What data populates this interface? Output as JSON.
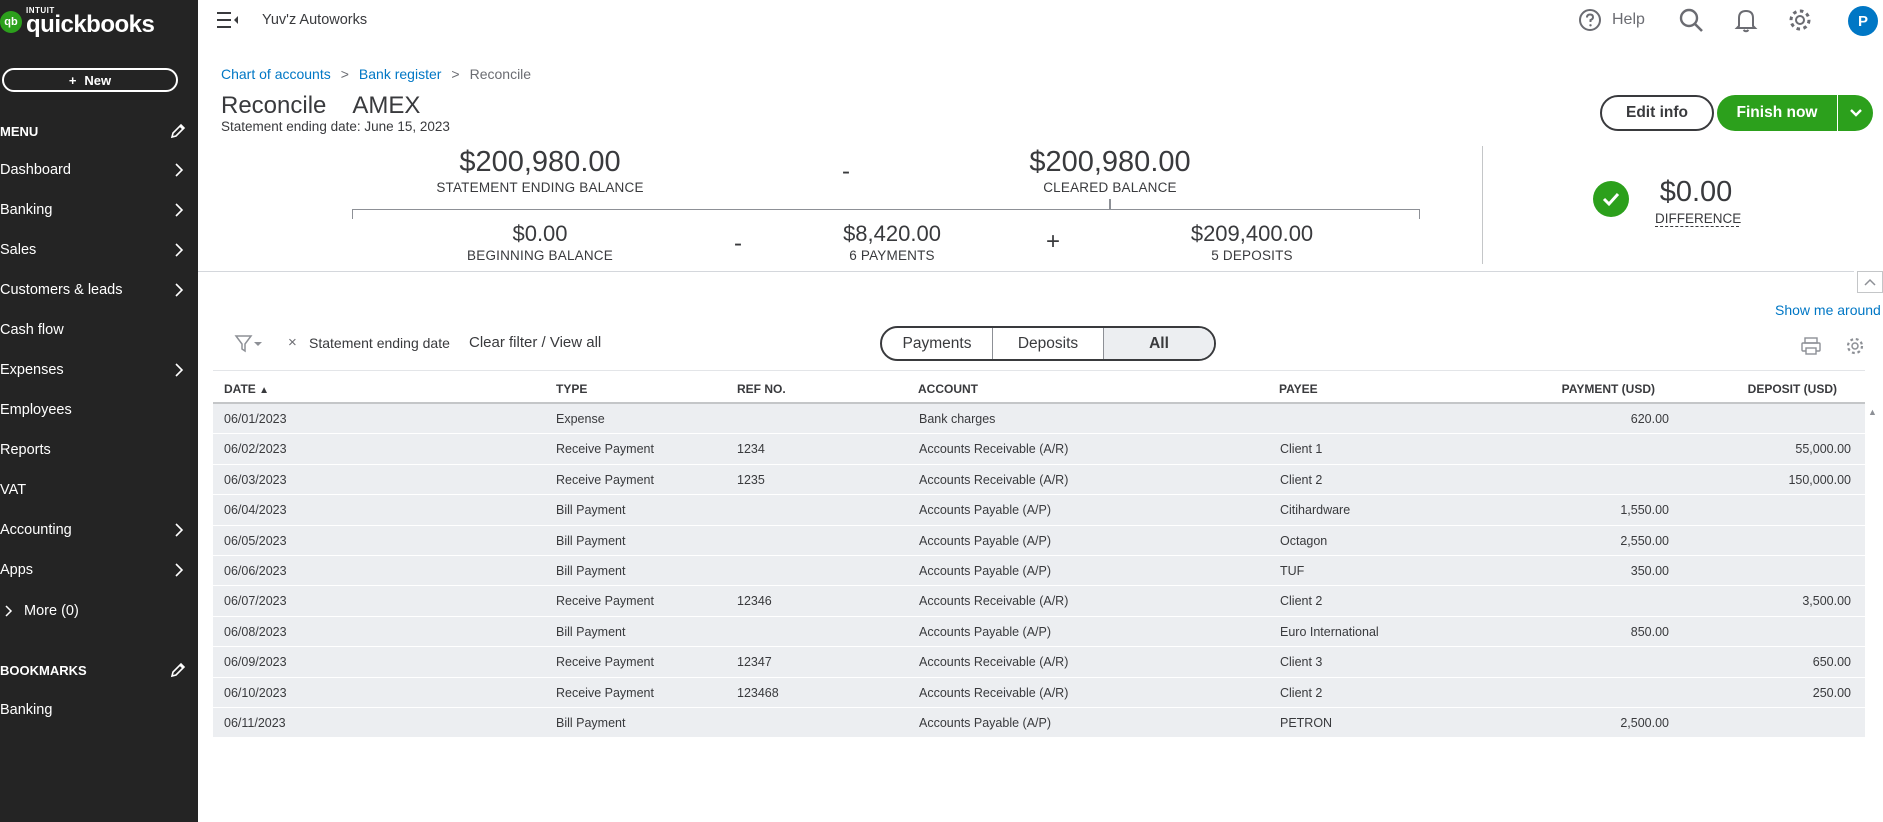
{
  "brand": {
    "logo_badge": "qb",
    "intuit": "INTUIT",
    "name": "quickbooks"
  },
  "sidebar": {
    "new_label": "New",
    "menu_label": "MENU",
    "items": [
      {
        "label": "Dashboard",
        "chevron": true
      },
      {
        "label": "Banking",
        "chevron": true
      },
      {
        "label": "Sales",
        "chevron": true
      },
      {
        "label": "Customers & leads",
        "chevron": true
      },
      {
        "label": "Cash flow",
        "chevron": false
      },
      {
        "label": "Expenses",
        "chevron": true
      },
      {
        "label": "Employees",
        "chevron": false
      },
      {
        "label": "Reports",
        "chevron": false
      },
      {
        "label": "VAT",
        "chevron": false
      },
      {
        "label": "Accounting",
        "chevron": true
      },
      {
        "label": "Apps",
        "chevron": true
      }
    ],
    "more_label": "More (0)",
    "bookmarks_label": "BOOKMARKS",
    "bookmarks": [
      {
        "label": "Banking"
      }
    ]
  },
  "topbar": {
    "company": "Yuv'z Autoworks",
    "help_label": "Help",
    "avatar_initial": "P"
  },
  "breadcrumb": {
    "item1": "Chart of accounts",
    "item2": "Bank register",
    "current": "Reconcile",
    "sep": ">"
  },
  "header": {
    "title": "Reconcile",
    "account": "AMEX",
    "statement_date": "Statement ending date: June 15, 2023",
    "edit_label": "Edit info",
    "finish_label": "Finish now"
  },
  "summary": {
    "statement_ending_balance": "$200,980.00",
    "statement_ending_label": "STATEMENT ENDING BALANCE",
    "minus1": "-",
    "cleared_balance": "$200,980.00",
    "cleared_label": "CLEARED BALANCE",
    "beginning_balance": "$0.00",
    "beginning_label": "BEGINNING BALANCE",
    "minus2": "-",
    "payments": "$8,420.00",
    "payments_label": "6 PAYMENTS",
    "plus": "+",
    "deposits": "$209,400.00",
    "deposits_label": "5 DEPOSITS",
    "difference": "$0.00",
    "difference_label": "DIFFERENCE"
  },
  "show_me_around": "Show me around",
  "filter": {
    "x": "×",
    "label": "Statement ending date",
    "clear": "Clear filter / View all",
    "tabs": [
      "Payments",
      "Deposits",
      "All"
    ],
    "active_tab": "All"
  },
  "table": {
    "columns": [
      "DATE",
      "TYPE",
      "REF NO.",
      "ACCOUNT",
      "PAYEE",
      "PAYMENT (USD)",
      "DEPOSIT (USD)"
    ],
    "sort_indicator": "▲",
    "rows": [
      {
        "date": "06/01/2023",
        "type": "Expense",
        "ref": "",
        "account": "Bank charges",
        "payee": "",
        "payment": "620.00",
        "deposit": ""
      },
      {
        "date": "06/02/2023",
        "type": "Receive Payment",
        "ref": "1234",
        "account": "Accounts Receivable (A/R)",
        "payee": "Client 1",
        "payment": "",
        "deposit": "55,000.00"
      },
      {
        "date": "06/03/2023",
        "type": "Receive Payment",
        "ref": "1235",
        "account": "Accounts Receivable (A/R)",
        "payee": "Client 2",
        "payment": "",
        "deposit": "150,000.00"
      },
      {
        "date": "06/04/2023",
        "type": "Bill Payment",
        "ref": "",
        "account": "Accounts Payable (A/P)",
        "payee": "Citihardware",
        "payment": "1,550.00",
        "deposit": ""
      },
      {
        "date": "06/05/2023",
        "type": "Bill Payment",
        "ref": "",
        "account": "Accounts Payable (A/P)",
        "payee": "Octagon",
        "payment": "2,550.00",
        "deposit": ""
      },
      {
        "date": "06/06/2023",
        "type": "Bill Payment",
        "ref": "",
        "account": "Accounts Payable (A/P)",
        "payee": "TUF",
        "payment": "350.00",
        "deposit": ""
      },
      {
        "date": "06/07/2023",
        "type": "Receive Payment",
        "ref": "12346",
        "account": "Accounts Receivable (A/R)",
        "payee": "Client 2",
        "payment": "",
        "deposit": "3,500.00"
      },
      {
        "date": "06/08/2023",
        "type": "Bill Payment",
        "ref": "",
        "account": "Accounts Payable (A/P)",
        "payee": "Euro International",
        "payment": "850.00",
        "deposit": ""
      },
      {
        "date": "06/09/2023",
        "type": "Receive Payment",
        "ref": "12347",
        "account": "Accounts Receivable (A/R)",
        "payee": "Client 3",
        "payment": "",
        "deposit": "650.00"
      },
      {
        "date": "06/10/2023",
        "type": "Receive Payment",
        "ref": "123468",
        "account": "Accounts Receivable (A/R)",
        "payee": "Client 2",
        "payment": "",
        "deposit": "250.00"
      },
      {
        "date": "06/11/2023",
        "type": "Bill Payment",
        "ref": "",
        "account": "Accounts Payable (A/P)",
        "payee": "PETRON",
        "payment": "2,500.00",
        "deposit": ""
      }
    ]
  },
  "colors": {
    "brand_green": "#2ca01c",
    "link_blue": "#0077c5",
    "sidebar_bg": "#242424",
    "row_bg": "#eceef1"
  }
}
